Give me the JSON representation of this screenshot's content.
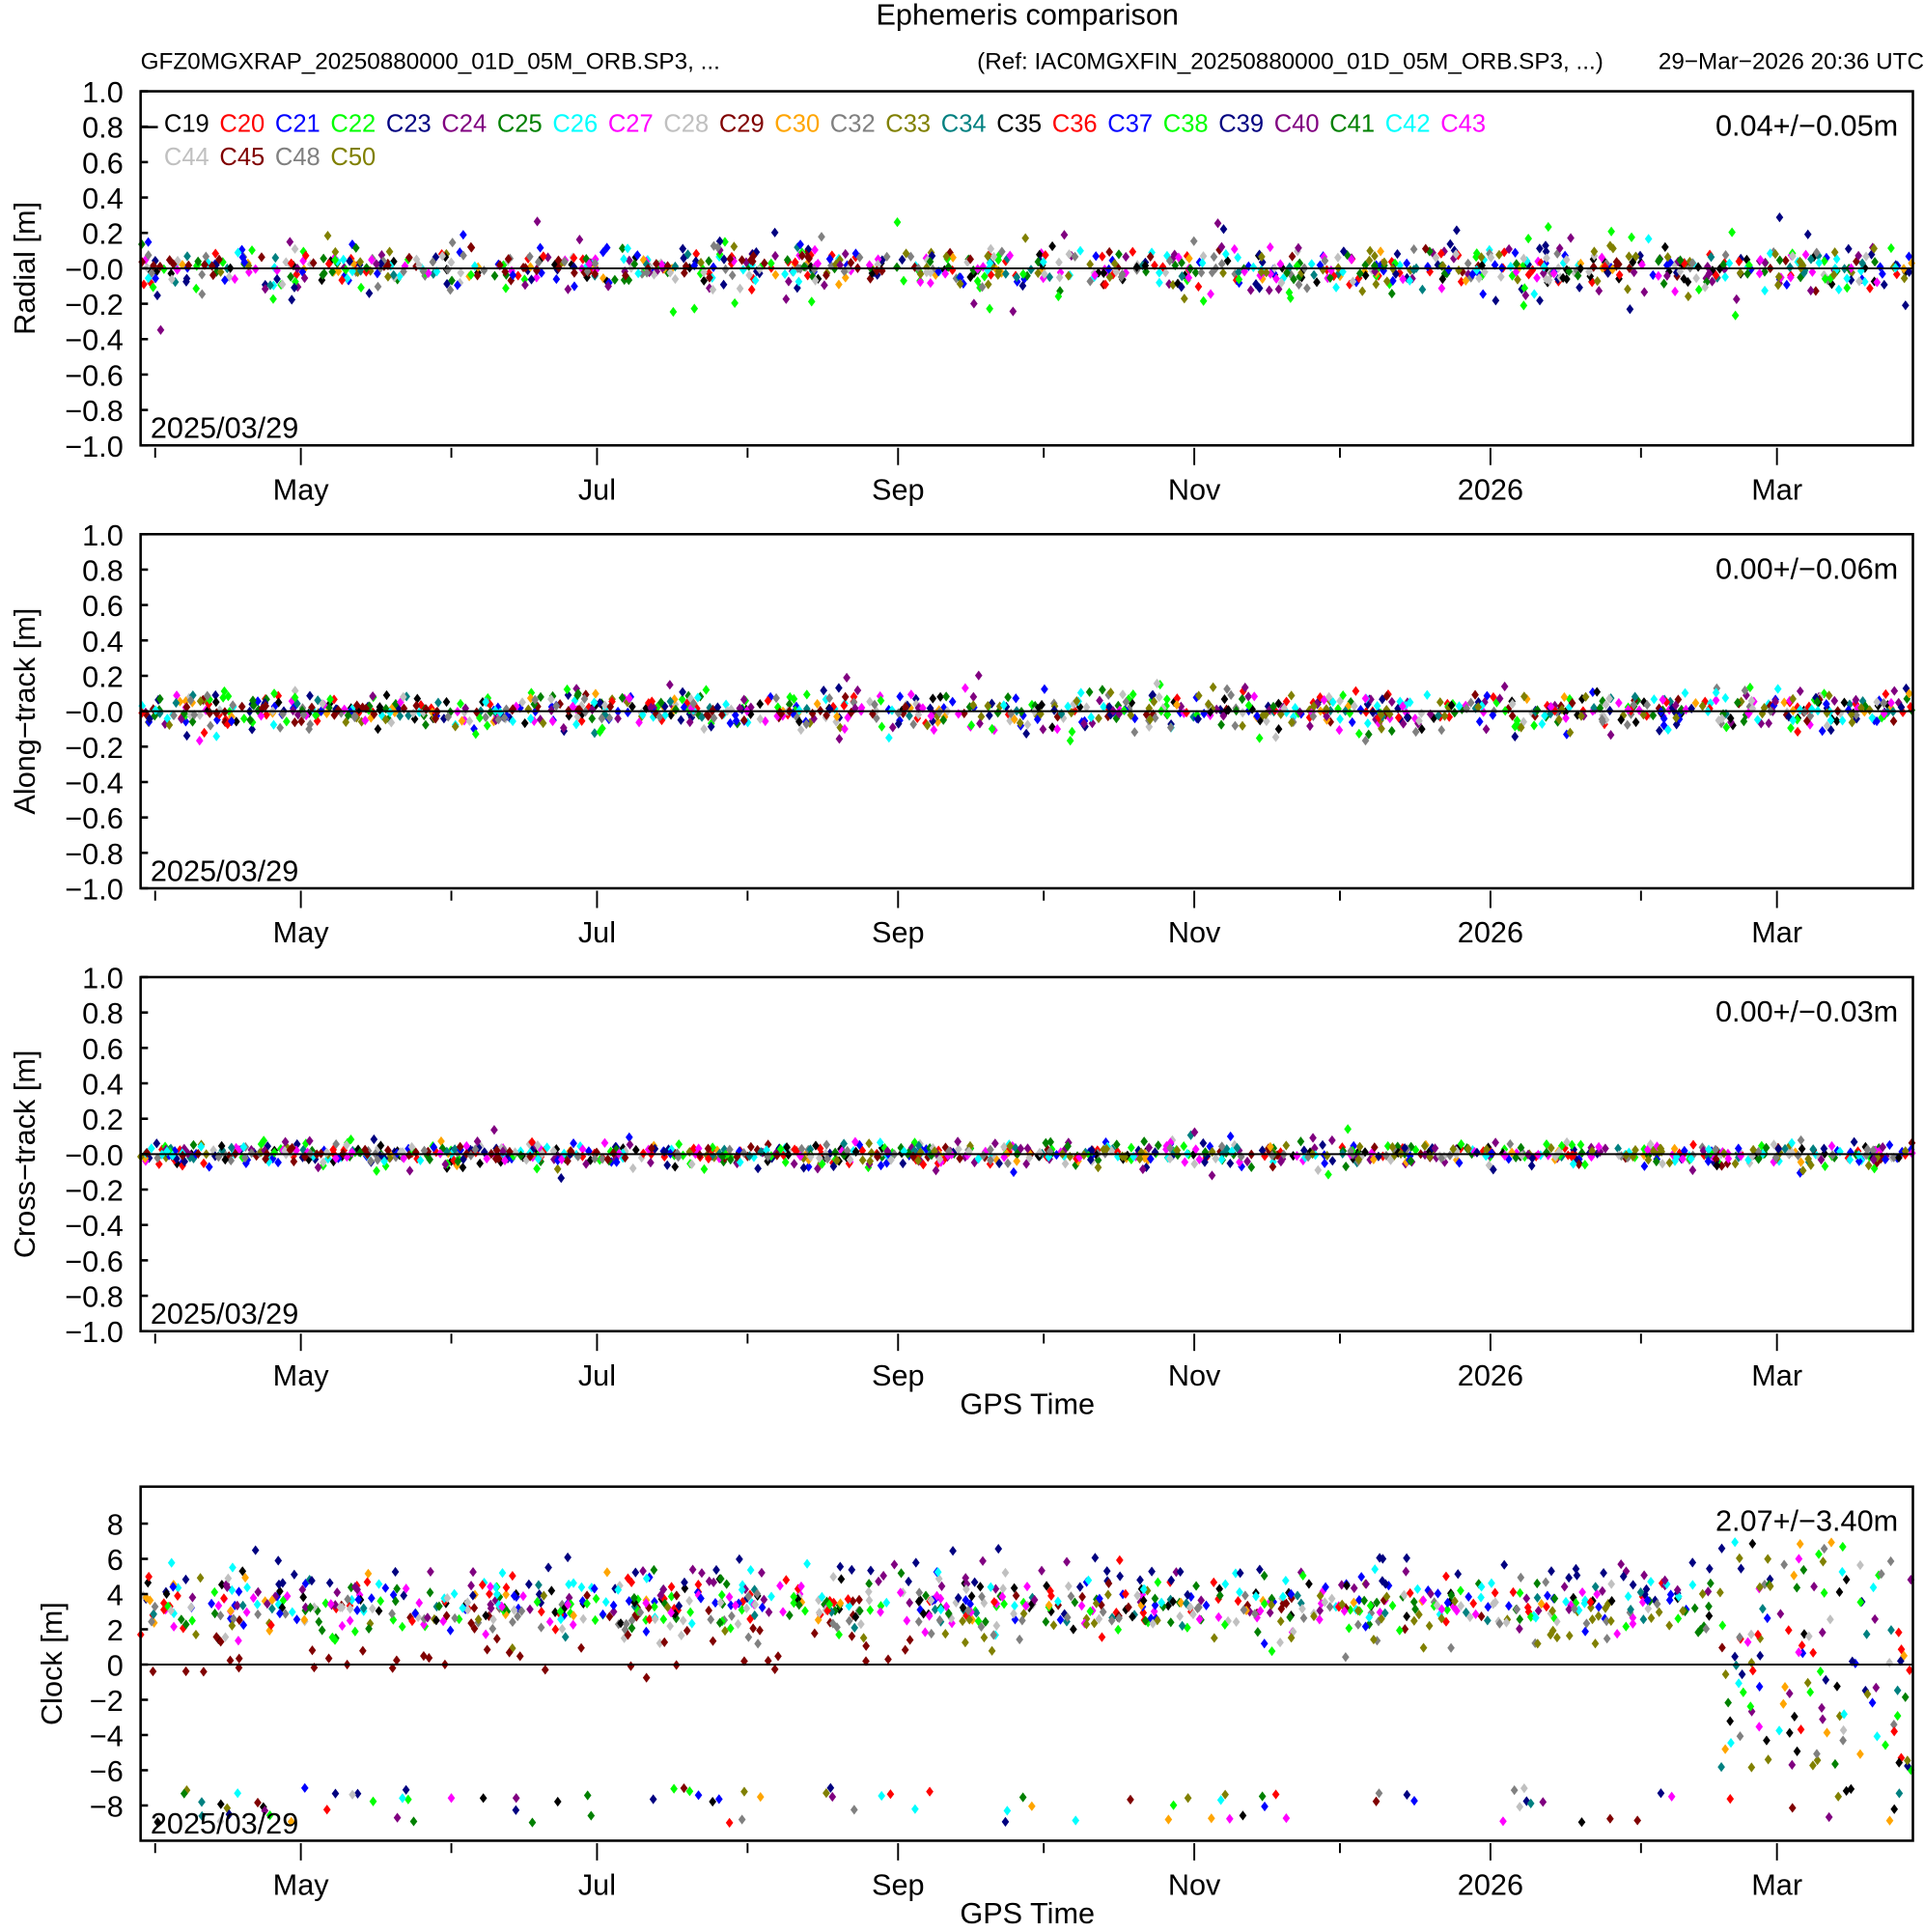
{
  "title": "Ephemeris comparison",
  "subtitle_left": "GFZ0MGXRAP_20250880000_01D_05M_ORB.SP3, ...",
  "subtitle_ref": "(Ref: IAC0MGXFIN_20250880000_01D_05M_ORB.SP3, ...)",
  "subtitle_date": "29−Mar−2026 20:36 UTC",
  "chart_data": {
    "type": "scatter",
    "x_axis": {
      "label": "GPS Time",
      "start_date": "2025-03-29",
      "span_days": 365,
      "month_ticks_days": [
        3,
        33,
        64,
        94,
        125,
        156,
        186,
        217,
        247,
        278,
        309,
        337
      ],
      "tick_labels": [
        "",
        "May",
        "",
        "Jul",
        "",
        "Sep",
        "",
        "Nov",
        "",
        "2026",
        "",
        "Mar"
      ]
    },
    "legend": {
      "placement": "top-left",
      "entries": [
        {
          "name": "C19",
          "color": "#000000",
          "radial_sd": 0.05,
          "along_sd": 0.05,
          "cross_sd": 0.03,
          "clock": 3.5
        },
        {
          "name": "C20",
          "color": "#ff0000",
          "radial_sd": 0.05,
          "along_sd": 0.05,
          "cross_sd": 0.03,
          "clock": 3.8
        },
        {
          "name": "C21",
          "color": "#0000ff",
          "radial_sd": 0.07,
          "along_sd": 0.05,
          "cross_sd": 0.04,
          "clock": 3.3
        },
        {
          "name": "C22",
          "color": "#00ff00",
          "radial_sd": 0.12,
          "along_sd": 0.08,
          "cross_sd": 0.05,
          "clock": 3.0
        },
        {
          "name": "C23",
          "color": "#000080",
          "radial_sd": 0.1,
          "along_sd": 0.06,
          "cross_sd": 0.04,
          "clock": 4.8
        },
        {
          "name": "C24",
          "color": "#800080",
          "radial_sd": 0.1,
          "along_sd": 0.09,
          "cross_sd": 0.05,
          "clock": 4.2
        },
        {
          "name": "C25",
          "color": "#008000",
          "radial_sd": 0.05,
          "along_sd": 0.05,
          "cross_sd": 0.03,
          "clock": 3.2
        },
        {
          "name": "C26",
          "color": "#00ffff",
          "radial_sd": 0.06,
          "along_sd": 0.05,
          "cross_sd": 0.03,
          "clock": 3.9
        },
        {
          "name": "C27",
          "color": "#ff00ff",
          "radial_sd": 0.05,
          "along_sd": 0.05,
          "cross_sd": 0.03,
          "clock": 3.1
        },
        {
          "name": "C28",
          "color": "#c0c0c0",
          "radial_sd": 0.05,
          "along_sd": 0.05,
          "cross_sd": 0.03,
          "clock": 3.4
        },
        {
          "name": "C29",
          "color": "#800000",
          "radial_sd": 0.05,
          "along_sd": 0.05,
          "cross_sd": 0.03,
          "clock": 3.0
        },
        {
          "name": "C30",
          "color": "#ffa500",
          "radial_sd": 0.05,
          "along_sd": 0.05,
          "cross_sd": 0.03,
          "clock": 3.6
        },
        {
          "name": "C32",
          "color": "#808080",
          "radial_sd": 0.06,
          "along_sd": 0.05,
          "cross_sd": 0.03,
          "clock": 2.8
        },
        {
          "name": "C33",
          "color": "#808000",
          "radial_sd": 0.06,
          "along_sd": 0.05,
          "cross_sd": 0.03,
          "clock": 2.7
        },
        {
          "name": "C34",
          "color": "#008080",
          "radial_sd": 0.05,
          "along_sd": 0.05,
          "cross_sd": 0.03,
          "clock": 3.2
        },
        {
          "name": "C35",
          "color": "#000000",
          "radial_sd": 0.05,
          "along_sd": 0.05,
          "cross_sd": 0.03,
          "clock": 3.3
        },
        {
          "name": "C36",
          "color": "#ff0000",
          "radial_sd": 0.05,
          "along_sd": 0.05,
          "cross_sd": 0.03,
          "clock": 3.7
        },
        {
          "name": "C37",
          "color": "#0000ff",
          "radial_sd": 0.06,
          "along_sd": 0.05,
          "cross_sd": 0.03,
          "clock": 3.4
        },
        {
          "name": "C38",
          "color": "#00ff00",
          "radial_sd": 0.1,
          "along_sd": 0.08,
          "cross_sd": 0.05,
          "clock": 3.0
        },
        {
          "name": "C39",
          "color": "#000080",
          "radial_sd": 0.1,
          "along_sd": 0.06,
          "cross_sd": 0.04,
          "clock": 4.9
        },
        {
          "name": "C40",
          "color": "#800080",
          "radial_sd": 0.1,
          "along_sd": 0.09,
          "cross_sd": 0.05,
          "clock": 4.3
        },
        {
          "name": "C41",
          "color": "#008000",
          "radial_sd": 0.05,
          "along_sd": 0.05,
          "cross_sd": 0.03,
          "clock": 3.1
        },
        {
          "name": "C42",
          "color": "#00ffff",
          "radial_sd": 0.06,
          "along_sd": 0.05,
          "cross_sd": 0.03,
          "clock": 4.0
        },
        {
          "name": "C43",
          "color": "#ff00ff",
          "radial_sd": 0.05,
          "along_sd": 0.05,
          "cross_sd": 0.03,
          "clock": 3.2
        },
        {
          "name": "C44",
          "color": "#c0c0c0",
          "radial_sd": 0.06,
          "along_sd": 0.05,
          "cross_sd": 0.03,
          "clock": 3.3
        },
        {
          "name": "C45",
          "color": "#800000",
          "radial_sd": 0.04,
          "along_sd": 0.03,
          "cross_sd": 0.02,
          "clock": 0.5,
          "days": [
            0,
            160
          ]
        },
        {
          "name": "C48",
          "color": "#808080",
          "radial_sd": 0.08,
          "along_sd": 0.05,
          "cross_sd": 0.03,
          "clock": 2.6
        },
        {
          "name": "C50",
          "color": "#808000",
          "radial_sd": 0.08,
          "along_sd": 0.05,
          "cross_sd": 0.03,
          "clock": 2.5,
          "days": [
            160,
            365
          ]
        }
      ]
    },
    "panels": [
      {
        "key": "radial_sd",
        "ylabel": "Radial [m]",
        "stat": "0.04+/−0.05m",
        "date_label": "2025/03/29",
        "xlabel": "",
        "ylim": [
          -1,
          1
        ],
        "yticks": [
          1,
          0.8,
          0.6,
          0.4,
          0.2,
          0,
          -0.2,
          -0.4,
          -0.6,
          -0.8,
          -1
        ],
        "ytick_labels": [
          "1.0",
          "0.8",
          "0.6",
          "0.4",
          "0.2",
          "−0.0",
          "−0.2",
          "−0.4",
          "−0.6",
          "−0.8",
          "−1.0"
        ]
      },
      {
        "key": "along_sd",
        "ylabel": "Along−track [m]",
        "stat": "0.00+/−0.06m",
        "date_label": "2025/03/29",
        "xlabel": "",
        "ylim": [
          -1,
          1
        ],
        "yticks": [
          1,
          0.8,
          0.6,
          0.4,
          0.2,
          0,
          -0.2,
          -0.4,
          -0.6,
          -0.8,
          -1
        ],
        "ytick_labels": [
          "1.0",
          "0.8",
          "0.6",
          "0.4",
          "0.2",
          "−0.0",
          "−0.2",
          "−0.4",
          "−0.6",
          "−0.8",
          "−1.0"
        ]
      },
      {
        "key": "cross_sd",
        "ylabel": "Cross−track [m]",
        "stat": "0.00+/−0.03m",
        "date_label": "2025/03/29",
        "xlabel": "GPS Time",
        "ylim": [
          -1,
          1
        ],
        "yticks": [
          1,
          0.8,
          0.6,
          0.4,
          0.2,
          0,
          -0.2,
          -0.4,
          -0.6,
          -0.8,
          -1
        ],
        "ytick_labels": [
          "1.0",
          "0.8",
          "0.6",
          "0.4",
          "0.2",
          "−0.0",
          "−0.2",
          "−0.4",
          "−0.6",
          "−0.8",
          "−1.0"
        ]
      },
      {
        "key": "clock",
        "ylabel": "Clock [m]",
        "stat": "2.07+/−3.40m",
        "date_label": "2025/03/29",
        "xlabel": "GPS Time",
        "ylim": [
          -10,
          10.1
        ],
        "yticks": [
          8,
          6,
          4,
          2,
          0,
          -2,
          -4,
          -6,
          -8
        ],
        "ytick_labels": [
          "8",
          "6",
          "4",
          "2",
          "0",
          "−2",
          "−4",
          "−6",
          "−8"
        ]
      }
    ]
  }
}
